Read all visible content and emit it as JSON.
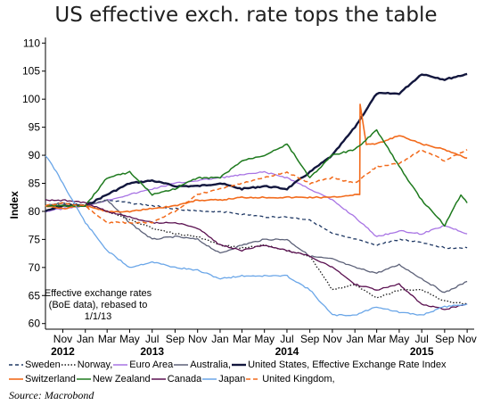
{
  "title": "US effective exch. rate tops the table",
  "source": "Source: Macrobond",
  "annotation": [
    "Effective exchange rates",
    "(BoE data), rebased to",
    "1/1/13"
  ],
  "chart_data": {
    "type": "line",
    "ylabel": "Index",
    "ylim": [
      59,
      111
    ],
    "yticks": [
      60,
      65,
      70,
      75,
      80,
      85,
      90,
      95,
      100,
      105,
      110
    ],
    "xlim": [
      "2012-09-15",
      "2015-11-20"
    ],
    "month_ticks": [
      "2012-11-01",
      "2013-01-01",
      "2013-03-01",
      "2013-05-01",
      "2013-07-01",
      "2013-09-01",
      "2013-11-01",
      "2014-01-01",
      "2014-03-01",
      "2014-05-01",
      "2014-07-01",
      "2014-09-01",
      "2014-11-01",
      "2015-01-01",
      "2015-03-01",
      "2015-05-01",
      "2015-07-01",
      "2015-09-01",
      "2015-11-01"
    ],
    "month_labels": [
      "Nov",
      "Jan",
      "Mar",
      "May",
      "Jul",
      "Sep",
      "Nov",
      "Jan",
      "Mar",
      "May",
      "Jul",
      "Sep",
      "Nov",
      "Jan",
      "Mar",
      "May",
      "Jul",
      "Sep",
      "Nov"
    ],
    "years": [
      {
        "label": "2012",
        "date": "2012-11-01"
      },
      {
        "label": "2013",
        "date": "2013-07-01"
      },
      {
        "label": "2014",
        "date": "2014-07-01"
      },
      {
        "label": "2015",
        "date": "2015-07-01"
      }
    ],
    "series": [
      {
        "name": "Sweden",
        "color": "#1f3864",
        "dash": "4,3",
        "width": 1.3,
        "points": [
          [
            "2012-09-15",
            80
          ],
          [
            "2012-11-01",
            81.5
          ],
          [
            "2013-01-01",
            81
          ],
          [
            "2013-03-01",
            82
          ],
          [
            "2013-05-01",
            81.5
          ],
          [
            "2013-07-01",
            81
          ],
          [
            "2013-09-01",
            80.5
          ],
          [
            "2013-11-01",
            80
          ],
          [
            "2014-01-01",
            80
          ],
          [
            "2014-03-01",
            79.5
          ],
          [
            "2014-05-01",
            79
          ],
          [
            "2014-07-01",
            79
          ],
          [
            "2014-09-01",
            78.5
          ],
          [
            "2014-11-01",
            76
          ],
          [
            "2015-01-01",
            75
          ],
          [
            "2015-03-01",
            74
          ],
          [
            "2015-05-01",
            75
          ],
          [
            "2015-07-01",
            74.5
          ],
          [
            "2015-09-01",
            73.5
          ],
          [
            "2015-11-01",
            73.5
          ]
        ]
      },
      {
        "name": "Norway,",
        "color": "#1a1a1a",
        "dash": "1.5,2",
        "width": 1.3,
        "points": [
          [
            "2012-09-15",
            81
          ],
          [
            "2012-11-01",
            81.5
          ],
          [
            "2013-01-01",
            81
          ],
          [
            "2013-03-01",
            80
          ],
          [
            "2013-05-01",
            78.5
          ],
          [
            "2013-07-01",
            77
          ],
          [
            "2013-09-01",
            76
          ],
          [
            "2013-11-01",
            75.5
          ],
          [
            "2014-01-01",
            74
          ],
          [
            "2014-03-01",
            73.5
          ],
          [
            "2014-05-01",
            74
          ],
          [
            "2014-07-01",
            73
          ],
          [
            "2014-09-01",
            72
          ],
          [
            "2014-11-01",
            66
          ],
          [
            "2015-01-01",
            67
          ],
          [
            "2015-03-01",
            64.5
          ],
          [
            "2015-05-01",
            66
          ],
          [
            "2015-07-01",
            66
          ],
          [
            "2015-09-01",
            64
          ],
          [
            "2015-11-01",
            63.5
          ]
        ]
      },
      {
        "name": "Euro Area",
        "color": "#a874e4",
        "dash": "",
        "width": 1.3,
        "points": [
          [
            "2012-09-15",
            80
          ],
          [
            "2012-11-01",
            80.5
          ],
          [
            "2013-01-01",
            81
          ],
          [
            "2013-03-01",
            82
          ],
          [
            "2013-05-01",
            83
          ],
          [
            "2013-07-01",
            84
          ],
          [
            "2013-09-01",
            85
          ],
          [
            "2013-11-01",
            85.5
          ],
          [
            "2014-01-01",
            86
          ],
          [
            "2014-03-01",
            86.5
          ],
          [
            "2014-05-01",
            87
          ],
          [
            "2014-07-01",
            86
          ],
          [
            "2014-09-01",
            84
          ],
          [
            "2014-11-01",
            82
          ],
          [
            "2015-01-01",
            79
          ],
          [
            "2015-03-01",
            75.5
          ],
          [
            "2015-05-01",
            76.5
          ],
          [
            "2015-07-01",
            76
          ],
          [
            "2015-09-01",
            77.5
          ],
          [
            "2015-11-01",
            76
          ]
        ]
      },
      {
        "name": "Australia,",
        "color": "#5c6178",
        "dash": "",
        "width": 1.3,
        "points": [
          [
            "2012-09-15",
            81
          ],
          [
            "2012-11-01",
            81.5
          ],
          [
            "2013-01-01",
            81
          ],
          [
            "2013-03-01",
            82
          ],
          [
            "2013-05-01",
            78
          ],
          [
            "2013-07-01",
            75
          ],
          [
            "2013-09-01",
            75.5
          ],
          [
            "2013-11-01",
            75
          ],
          [
            "2014-01-01",
            72.5
          ],
          [
            "2014-03-01",
            74
          ],
          [
            "2014-05-01",
            75
          ],
          [
            "2014-07-01",
            75
          ],
          [
            "2014-09-01",
            72
          ],
          [
            "2014-11-01",
            71.5
          ],
          [
            "2015-01-01",
            70
          ],
          [
            "2015-03-01",
            69
          ],
          [
            "2015-05-01",
            70.5
          ],
          [
            "2015-07-01",
            68
          ],
          [
            "2015-09-01",
            65.5
          ],
          [
            "2015-11-01",
            67.5
          ]
        ]
      },
      {
        "name": "United States, Effective Exchange Rate Index",
        "color": "#12163d",
        "dash": "",
        "width": 2.4,
        "points": [
          [
            "2012-09-15",
            80
          ],
          [
            "2012-11-01",
            81
          ],
          [
            "2013-01-01",
            81
          ],
          [
            "2013-03-01",
            83
          ],
          [
            "2013-05-01",
            85
          ],
          [
            "2013-07-01",
            85.5
          ],
          [
            "2013-09-01",
            84.5
          ],
          [
            "2013-11-01",
            84.5
          ],
          [
            "2014-01-01",
            85
          ],
          [
            "2014-03-01",
            84
          ],
          [
            "2014-05-01",
            84.5
          ],
          [
            "2014-07-01",
            84
          ],
          [
            "2014-09-01",
            87
          ],
          [
            "2014-11-01",
            90
          ],
          [
            "2015-01-01",
            95
          ],
          [
            "2015-03-01",
            101
          ],
          [
            "2015-05-01",
            101
          ],
          [
            "2015-07-01",
            104.5
          ],
          [
            "2015-09-01",
            103.5
          ],
          [
            "2015-11-01",
            104.5
          ]
        ]
      },
      {
        "name": "Switzerland",
        "color": "#f26a1b",
        "dash": "",
        "width": 1.6,
        "points": [
          [
            "2012-09-15",
            81
          ],
          [
            "2012-11-01",
            80.5
          ],
          [
            "2013-01-01",
            81
          ],
          [
            "2013-03-01",
            80
          ],
          [
            "2013-05-01",
            80
          ],
          [
            "2013-07-01",
            80.5
          ],
          [
            "2013-09-01",
            81
          ],
          [
            "2013-11-01",
            82
          ],
          [
            "2014-01-01",
            82
          ],
          [
            "2014-03-01",
            82.5
          ],
          [
            "2014-05-01",
            82.5
          ],
          [
            "2014-07-01",
            82.5
          ],
          [
            "2014-09-01",
            82.5
          ],
          [
            "2014-11-01",
            82.5
          ],
          [
            "2015-01-01",
            83
          ],
          [
            "2015-01-14",
            83
          ],
          [
            "2015-01-15",
            99
          ],
          [
            "2015-02-01",
            92
          ],
          [
            "2015-03-01",
            92
          ],
          [
            "2015-05-01",
            93.5
          ],
          [
            "2015-07-01",
            92
          ],
          [
            "2015-09-01",
            91
          ],
          [
            "2015-11-01",
            89.5
          ]
        ]
      },
      {
        "name": "New Zealand",
        "color": "#1e7a1e",
        "dash": "",
        "width": 1.5,
        "points": [
          [
            "2012-09-15",
            81
          ],
          [
            "2012-11-01",
            81
          ],
          [
            "2013-01-01",
            81
          ],
          [
            "2013-03-01",
            86
          ],
          [
            "2013-05-01",
            87
          ],
          [
            "2013-07-01",
            83
          ],
          [
            "2013-09-01",
            84
          ],
          [
            "2013-11-01",
            86
          ],
          [
            "2014-01-01",
            86
          ],
          [
            "2014-03-01",
            89
          ],
          [
            "2014-05-01",
            90
          ],
          [
            "2014-07-01",
            92
          ],
          [
            "2014-09-01",
            86
          ],
          [
            "2014-11-01",
            90
          ],
          [
            "2015-01-01",
            91
          ],
          [
            "2015-03-01",
            94.5
          ],
          [
            "2015-05-01",
            88
          ],
          [
            "2015-07-01",
            82
          ],
          [
            "2015-09-01",
            77.5
          ],
          [
            "2015-10-15",
            83
          ],
          [
            "2015-11-01",
            81.5
          ]
        ]
      },
      {
        "name": "Canada",
        "color": "#5a1050",
        "dash": "",
        "width": 1.3,
        "points": [
          [
            "2012-09-15",
            82
          ],
          [
            "2012-11-01",
            82
          ],
          [
            "2013-01-01",
            81.5
          ],
          [
            "2013-03-01",
            80
          ],
          [
            "2013-05-01",
            79
          ],
          [
            "2013-07-01",
            78
          ],
          [
            "2013-09-01",
            78
          ],
          [
            "2013-11-01",
            77
          ],
          [
            "2014-01-01",
            74
          ],
          [
            "2014-03-01",
            73
          ],
          [
            "2014-05-01",
            74
          ],
          [
            "2014-07-01",
            73
          ],
          [
            "2014-09-01",
            72
          ],
          [
            "2014-11-01",
            70
          ],
          [
            "2015-01-01",
            67
          ],
          [
            "2015-03-01",
            66
          ],
          [
            "2015-05-01",
            67
          ],
          [
            "2015-07-01",
            63.5
          ],
          [
            "2015-09-01",
            62.5
          ],
          [
            "2015-11-01",
            63.5
          ]
        ]
      },
      {
        "name": "Japan",
        "color": "#6aa6e8",
        "dash": "",
        "width": 1.3,
        "points": [
          [
            "2012-09-15",
            90
          ],
          [
            "2012-10-15",
            87
          ],
          [
            "2012-11-01",
            85
          ],
          [
            "2013-01-01",
            78
          ],
          [
            "2013-03-01",
            73
          ],
          [
            "2013-05-01",
            70
          ],
          [
            "2013-07-01",
            71
          ],
          [
            "2013-09-01",
            70
          ],
          [
            "2013-11-01",
            69.5
          ],
          [
            "2014-01-01",
            68
          ],
          [
            "2014-03-01",
            68.5
          ],
          [
            "2014-05-01",
            68.5
          ],
          [
            "2014-07-01",
            68.5
          ],
          [
            "2014-09-01",
            66
          ],
          [
            "2014-11-01",
            61.5
          ],
          [
            "2015-01-01",
            61.5
          ],
          [
            "2015-03-01",
            63
          ],
          [
            "2015-05-01",
            62
          ],
          [
            "2015-07-01",
            61.5
          ],
          [
            "2015-09-01",
            63
          ],
          [
            "2015-11-01",
            63.5
          ]
        ]
      },
      {
        "name": "United Kingdom,",
        "color": "#f26a1b",
        "dash": "5,3",
        "width": 1.5,
        "points": [
          [
            "2012-09-15",
            81
          ],
          [
            "2012-11-01",
            81.5
          ],
          [
            "2013-01-01",
            81
          ],
          [
            "2013-03-01",
            78
          ],
          [
            "2013-05-01",
            78
          ],
          [
            "2013-07-01",
            78
          ],
          [
            "2013-09-01",
            80
          ],
          [
            "2013-11-01",
            83
          ],
          [
            "2014-01-01",
            84
          ],
          [
            "2014-03-01",
            85
          ],
          [
            "2014-05-01",
            86
          ],
          [
            "2014-07-01",
            87
          ],
          [
            "2014-09-01",
            85
          ],
          [
            "2014-11-01",
            86
          ],
          [
            "2015-01-01",
            85
          ],
          [
            "2015-03-01",
            88
          ],
          [
            "2015-05-01",
            88.5
          ],
          [
            "2015-07-01",
            91
          ],
          [
            "2015-09-01",
            89
          ],
          [
            "2015-11-01",
            91
          ]
        ]
      }
    ]
  },
  "legend_rows": [
    [
      0,
      1,
      2,
      3,
      4
    ],
    [
      5,
      6,
      7,
      8,
      9
    ]
  ]
}
